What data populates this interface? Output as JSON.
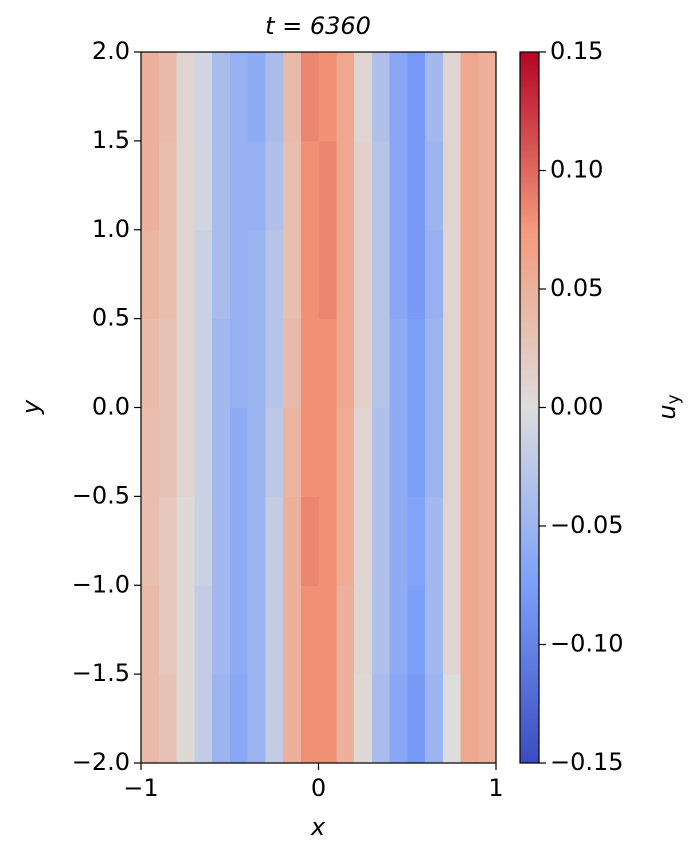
{
  "chart_data": {
    "type": "heatmap",
    "title": "t = 6360",
    "xlabel": "x",
    "ylabel": "y",
    "colorbar_label": {
      "base": "u",
      "sub": "y"
    },
    "colormap": "coolwarm",
    "x": [
      -0.95,
      -0.85,
      -0.75,
      -0.65,
      -0.55,
      -0.45,
      -0.35,
      -0.25,
      -0.15,
      -0.05,
      0.05,
      0.15,
      0.25,
      0.35,
      0.45,
      0.55,
      0.65,
      0.75,
      0.85,
      0.95
    ],
    "y": [
      -1.75,
      -1.25,
      -0.75,
      -0.25,
      0.25,
      0.75,
      1.25,
      1.75
    ],
    "values": [
      [
        0.04,
        0.03,
        0.005,
        -0.02,
        -0.05,
        -0.065,
        -0.05,
        -0.02,
        0.05,
        0.08,
        0.08,
        0.05,
        0.005,
        -0.04,
        -0.065,
        -0.08,
        -0.05,
        0.0,
        0.06,
        0.05
      ],
      [
        0.04,
        0.025,
        0.005,
        -0.02,
        -0.045,
        -0.06,
        -0.05,
        -0.02,
        0.05,
        0.08,
        0.08,
        0.05,
        0.01,
        -0.035,
        -0.06,
        -0.075,
        -0.045,
        0.01,
        0.06,
        0.05
      ],
      [
        0.035,
        0.025,
        0.005,
        -0.015,
        -0.045,
        -0.06,
        -0.05,
        -0.02,
        0.05,
        0.085,
        0.08,
        0.055,
        0.01,
        -0.035,
        -0.06,
        -0.07,
        -0.045,
        0.01,
        0.06,
        0.05
      ],
      [
        0.035,
        0.03,
        0.01,
        -0.015,
        -0.045,
        -0.06,
        -0.05,
        -0.025,
        0.045,
        0.08,
        0.08,
        0.055,
        0.01,
        -0.035,
        -0.06,
        -0.075,
        -0.05,
        0.01,
        0.06,
        0.05
      ],
      [
        0.04,
        0.03,
        0.01,
        -0.015,
        -0.045,
        -0.055,
        -0.05,
        -0.03,
        0.04,
        0.08,
        0.08,
        0.06,
        0.015,
        -0.03,
        -0.06,
        -0.075,
        -0.05,
        0.01,
        0.06,
        0.05
      ],
      [
        0.045,
        0.035,
        0.01,
        -0.015,
        -0.04,
        -0.055,
        -0.05,
        -0.03,
        0.035,
        0.08,
        0.085,
        0.06,
        0.015,
        -0.03,
        -0.065,
        -0.08,
        -0.055,
        0.01,
        0.06,
        0.05
      ],
      [
        0.05,
        0.035,
        0.01,
        -0.01,
        -0.04,
        -0.055,
        -0.055,
        -0.035,
        0.035,
        0.08,
        0.085,
        0.06,
        0.015,
        -0.03,
        -0.065,
        -0.08,
        -0.05,
        0.01,
        0.06,
        0.05
      ],
      [
        0.05,
        0.04,
        0.01,
        -0.01,
        -0.04,
        -0.055,
        -0.06,
        -0.04,
        0.04,
        0.085,
        0.08,
        0.06,
        0.01,
        -0.035,
        -0.065,
        -0.08,
        -0.045,
        0.01,
        0.06,
        0.05
      ]
    ],
    "xlim": [
      -1,
      1
    ],
    "ylim": [
      -2,
      2
    ],
    "clim": [
      -0.15,
      0.15
    ],
    "xticks": [
      {
        "value": -1,
        "label": "−1"
      },
      0,
      1
    ],
    "yticks": [
      {
        "value": -2,
        "label": "−2.0"
      },
      {
        "value": -1.5,
        "label": "−1.5"
      },
      {
        "value": -1,
        "label": "−1.0"
      },
      {
        "value": -0.5,
        "label": "−0.5"
      },
      {
        "value": 0,
        "label": "0.0"
      },
      0.5,
      {
        "value": 1,
        "label": "1.0"
      },
      1.5,
      {
        "value": 2,
        "label": "2.0"
      }
    ],
    "cticks": [
      {
        "value": -0.15,
        "label": "−0.15"
      },
      {
        "value": -0.1,
        "label": "−0.10"
      },
      {
        "value": -0.05,
        "label": "−0.05"
      },
      {
        "value": 0,
        "label": "0.00"
      },
      0.05,
      {
        "value": 0.1,
        "label": "0.10"
      },
      0.15
    ]
  }
}
